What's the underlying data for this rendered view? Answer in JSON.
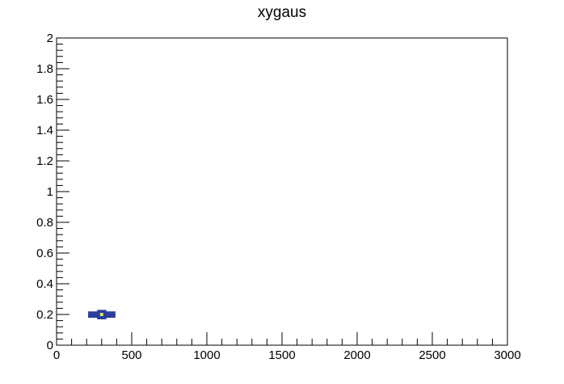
{
  "chart_data": {
    "type": "heatmap",
    "title": "xygaus",
    "xlabel": "",
    "ylabel": "",
    "xlim": [
      0,
      3000
    ],
    "ylim": [
      0,
      2
    ],
    "x_ticks": [
      "0",
      "500",
      "1000",
      "1500",
      "2000",
      "2500",
      "3000"
    ],
    "y_ticks": [
      "0",
      "0.2",
      "0.4",
      "0.6",
      "0.8",
      "1",
      "1.2",
      "1.4",
      "1.6",
      "1.8",
      "2"
    ],
    "grid": false,
    "legend": "none",
    "peak": {
      "x": 300,
      "y": 0.2
    },
    "x_sigma": 45,
    "y_sigma": 0.0125,
    "colors": {
      "blob_body": "#2a3f9f",
      "blob_center": "#e8e24a",
      "frame": "#000000",
      "background": "#ffffff"
    }
  }
}
